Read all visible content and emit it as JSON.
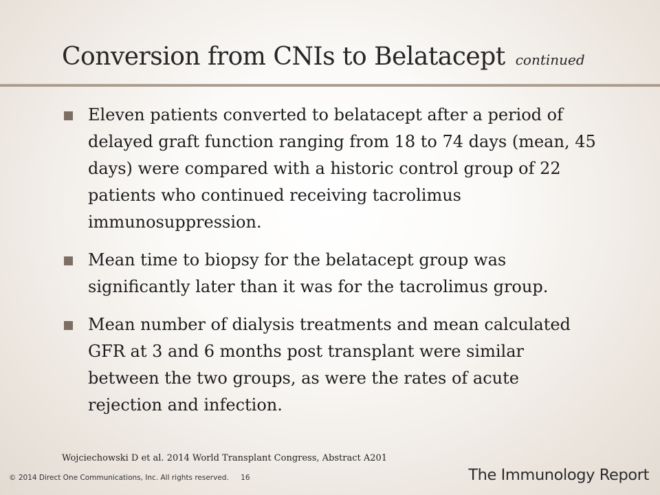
{
  "slide": {
    "title": "Conversion from CNIs to Belatacept",
    "title_suffix": "continued",
    "bullets": [
      "Eleven patients converted to belatacept after a period of delayed graft function ranging from 18 to 74 days (mean, 45 days) were compared with a historic control group of 22 patients who continued receiving tacrolimus immunosuppression.",
      "Mean time to biopsy for the belatacept group was significantly later than it was for the tacrolimus group.",
      "Mean number of dialysis treatments and mean calculated GFR at 3 and 6 months post transplant were similar between the two groups, as were the rates of acute rejection and infection."
    ],
    "citation": "Wojciechowski D et al. 2014 World Transplant Congress, Abstract A201"
  },
  "footer": {
    "copyright": "© 2014 Direct One Communications, Inc. All rights reserved.",
    "page_number": "16",
    "brand": "The Immunology Report"
  }
}
